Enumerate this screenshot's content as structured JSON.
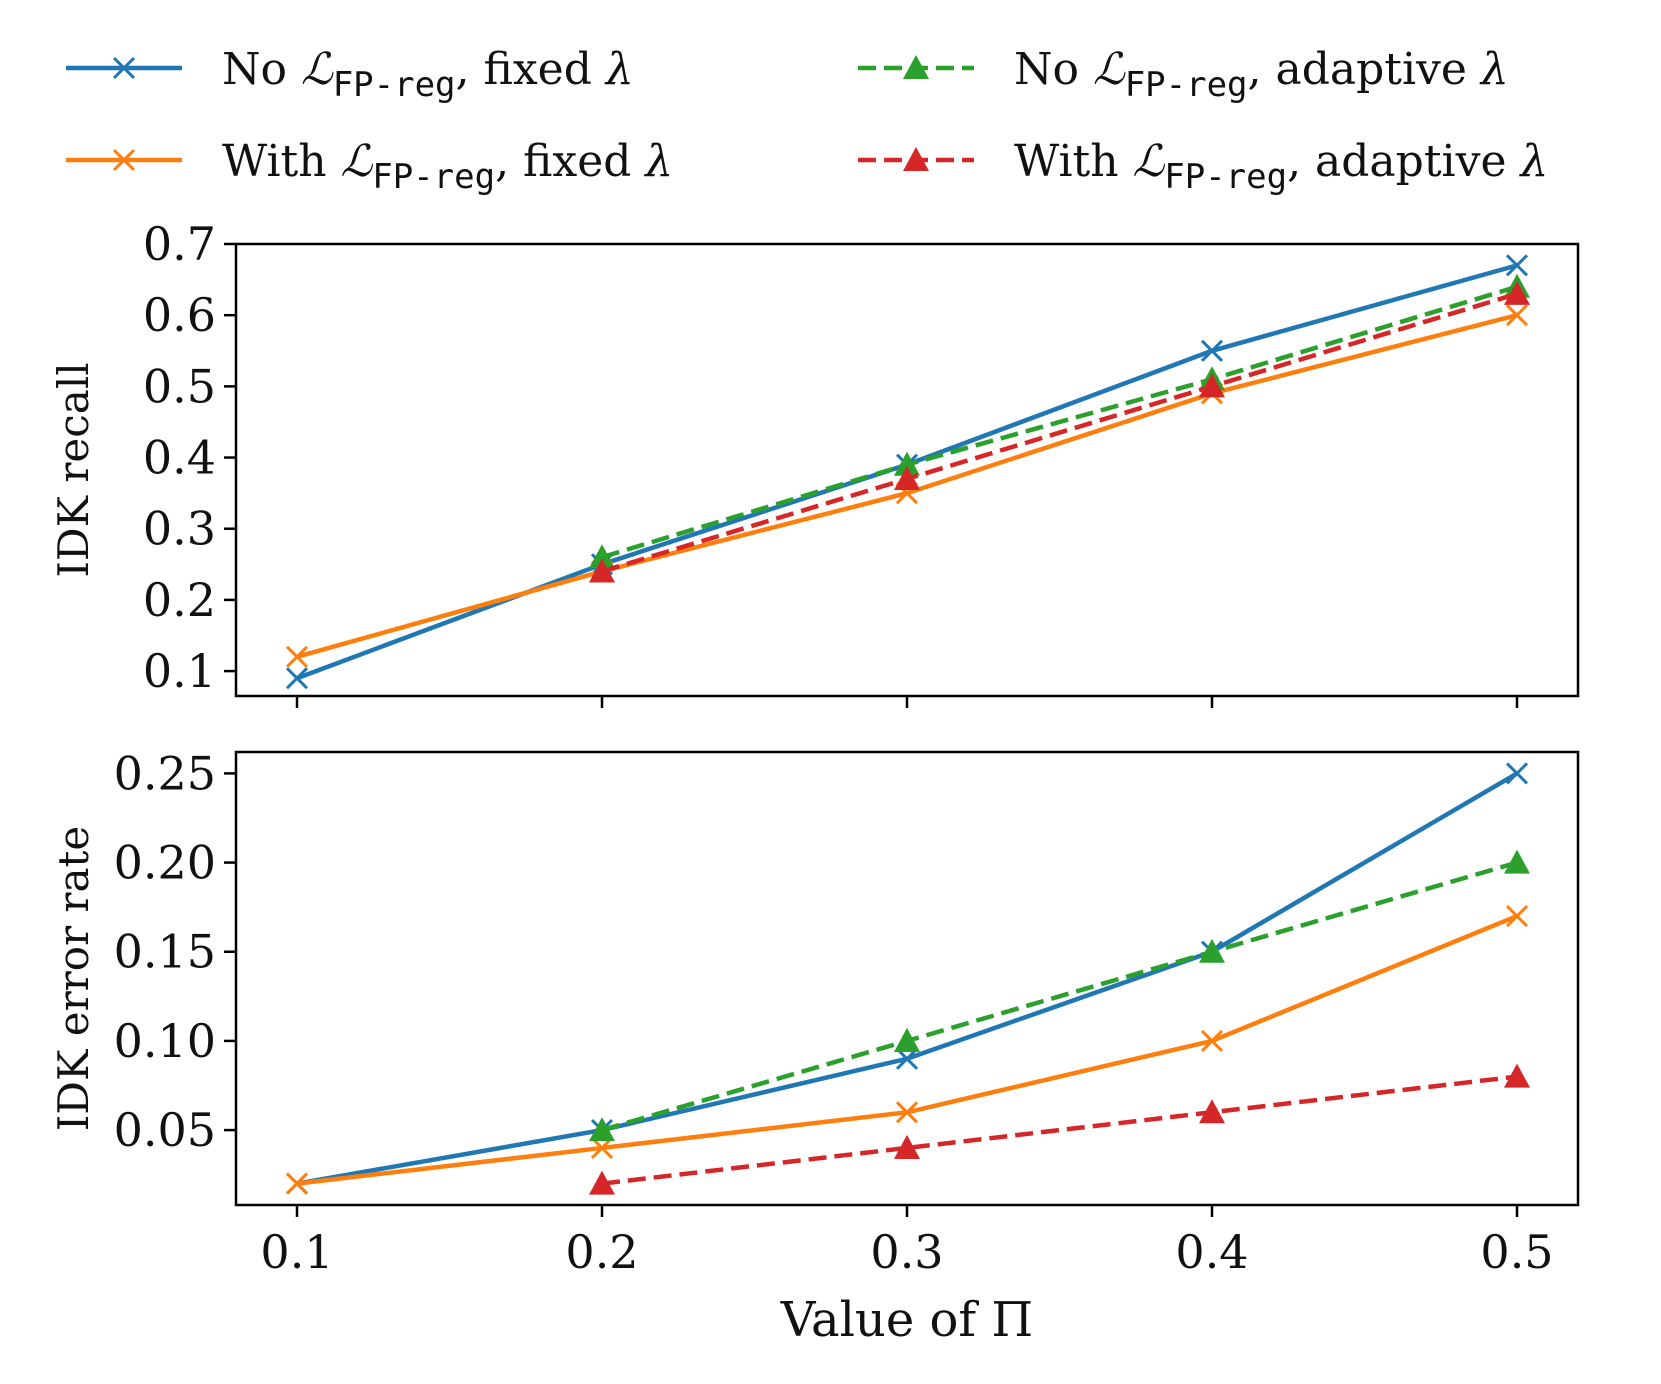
{
  "chart_data": [
    {
      "type": "line",
      "title": "",
      "xlabel": "",
      "ylabel": "IDK recall",
      "ylim": [
        0.065,
        0.7
      ],
      "yticks": [
        "0.1",
        "0.2",
        "0.3",
        "0.4",
        "0.5",
        "0.6",
        "0.7"
      ],
      "x": [
        0.1,
        0.2,
        0.3,
        0.4,
        0.5
      ],
      "series": [
        {
          "name": "No LFP-reg, fixed λ",
          "color": "#1f77b4",
          "marker": "x",
          "dash": "solid",
          "x": [
            0.1,
            0.2,
            0.3,
            0.4,
            0.5
          ],
          "values": [
            0.09,
            0.25,
            0.39,
            0.55,
            0.67
          ]
        },
        {
          "name": "With LFP-reg, fixed λ",
          "color": "#ff7f0e",
          "marker": "x",
          "dash": "solid",
          "x": [
            0.1,
            0.2,
            0.3,
            0.4,
            0.5
          ],
          "values": [
            0.12,
            0.24,
            0.35,
            0.49,
            0.6
          ]
        },
        {
          "name": "No LFP-reg, adaptive λ",
          "color": "#2ca02c",
          "marker": "triangle",
          "dash": "dashed",
          "x": [
            0.2,
            0.3,
            0.4,
            0.5
          ],
          "values": [
            0.26,
            0.39,
            0.51,
            0.64
          ]
        },
        {
          "name": "With LFP-reg, adaptive λ",
          "color": "#d62728",
          "marker": "triangle",
          "dash": "dashed",
          "x": [
            0.2,
            0.3,
            0.4,
            0.5
          ],
          "values": [
            0.24,
            0.37,
            0.5,
            0.63
          ]
        }
      ]
    },
    {
      "type": "line",
      "title": "",
      "xlabel": "Value of Π",
      "ylabel": "IDK error rate",
      "ylim": [
        0.008,
        0.262
      ],
      "yticks": [
        "0.05",
        "0.10",
        "0.15",
        "0.20",
        "0.25"
      ],
      "xticks": [
        "0.1",
        "0.2",
        "0.3",
        "0.4",
        "0.5"
      ],
      "x": [
        0.1,
        0.2,
        0.3,
        0.4,
        0.5
      ],
      "series": [
        {
          "name": "No LFP-reg, fixed λ",
          "color": "#1f77b4",
          "marker": "x",
          "dash": "solid",
          "x": [
            0.1,
            0.2,
            0.3,
            0.4,
            0.5
          ],
          "values": [
            0.02,
            0.05,
            0.09,
            0.15,
            0.25
          ]
        },
        {
          "name": "With LFP-reg, fixed λ",
          "color": "#ff7f0e",
          "marker": "x",
          "dash": "solid",
          "x": [
            0.1,
            0.2,
            0.3,
            0.4,
            0.5
          ],
          "values": [
            0.02,
            0.04,
            0.06,
            0.1,
            0.17
          ]
        },
        {
          "name": "No LFP-reg, adaptive λ",
          "color": "#2ca02c",
          "marker": "triangle",
          "dash": "dashed",
          "x": [
            0.2,
            0.3,
            0.4,
            0.5
          ],
          "values": [
            0.05,
            0.1,
            0.15,
            0.2
          ]
        },
        {
          "name": "With LFP-reg, adaptive λ",
          "color": "#d62728",
          "marker": "triangle",
          "dash": "dashed",
          "x": [
            0.2,
            0.3,
            0.4,
            0.5
          ],
          "values": [
            0.02,
            0.04,
            0.06,
            0.08
          ]
        }
      ]
    }
  ],
  "legend": {
    "placement": "top",
    "entries": [
      {
        "prefix": "No ",
        "symbol": "ℒ",
        "sub": "FP-reg",
        "suffix": ", fixed ",
        "lambda": "λ",
        "color": "#1f77b4",
        "marker": "x",
        "dash": "solid"
      },
      {
        "prefix": "No ",
        "symbol": "ℒ",
        "sub": "FP-reg",
        "suffix": ", adaptive ",
        "lambda": "λ",
        "color": "#2ca02c",
        "marker": "triangle",
        "dash": "dashed"
      },
      {
        "prefix": "With ",
        "symbol": "ℒ",
        "sub": "FP-reg",
        "suffix": ", fixed ",
        "lambda": "λ",
        "color": "#ff7f0e",
        "marker": "x",
        "dash": "solid"
      },
      {
        "prefix": "With ",
        "symbol": "ℒ",
        "sub": "FP-reg",
        "suffix": ", adaptive ",
        "lambda": "λ",
        "color": "#d62728",
        "marker": "triangle",
        "dash": "dashed"
      }
    ]
  },
  "xaxis": {
    "range": [
      0.08,
      0.52
    ],
    "ticks": [
      0.1,
      0.2,
      0.3,
      0.4,
      0.5
    ]
  }
}
